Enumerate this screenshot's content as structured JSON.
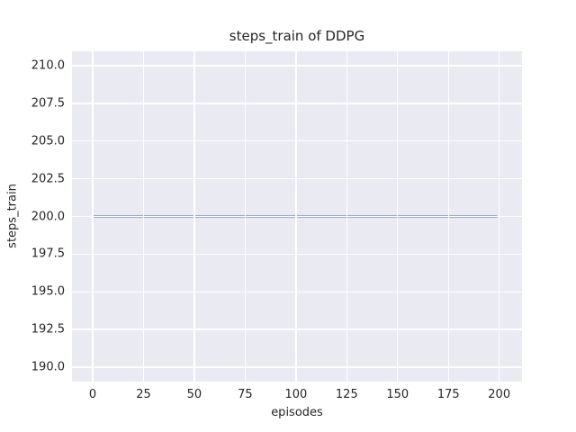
{
  "chart_data": {
    "type": "line",
    "title": "steps_train of DDPG",
    "xlabel": "episodes",
    "ylabel": "steps_train",
    "x_ticks": [
      {
        "value": 0,
        "label": "0"
      },
      {
        "value": 25,
        "label": "25"
      },
      {
        "value": 50,
        "label": "50"
      },
      {
        "value": 75,
        "label": "75"
      },
      {
        "value": 100,
        "label": "100"
      },
      {
        "value": 125,
        "label": "125"
      },
      {
        "value": 150,
        "label": "150"
      },
      {
        "value": 175,
        "label": "175"
      },
      {
        "value": 200,
        "label": "200"
      }
    ],
    "y_ticks": [
      {
        "value": 190.0,
        "label": "190.0"
      },
      {
        "value": 192.5,
        "label": "192.5"
      },
      {
        "value": 195.0,
        "label": "195.0"
      },
      {
        "value": 197.5,
        "label": "197.5"
      },
      {
        "value": 200.0,
        "label": "200.0"
      },
      {
        "value": 202.5,
        "label": "202.5"
      },
      {
        "value": 205.0,
        "label": "205.0"
      },
      {
        "value": 207.5,
        "label": "207.5"
      },
      {
        "value": 210.0,
        "label": "210.0"
      }
    ],
    "xlim": [
      -10.2,
      211.2
    ],
    "ylim": [
      189.05,
      210.95
    ],
    "grid": true,
    "legend": "none",
    "series": [
      {
        "name": "steps_train",
        "x": [
          0,
          199
        ],
        "y": [
          200.0,
          200.0
        ],
        "color": "#4C72B0",
        "linewidth": 2
      }
    ]
  },
  "colors": {
    "figure_bg": "#ffffff",
    "plot_bg": "#EAEAF2",
    "grid": "#ffffff",
    "text": "#262626",
    "line": "#4C72B0"
  }
}
